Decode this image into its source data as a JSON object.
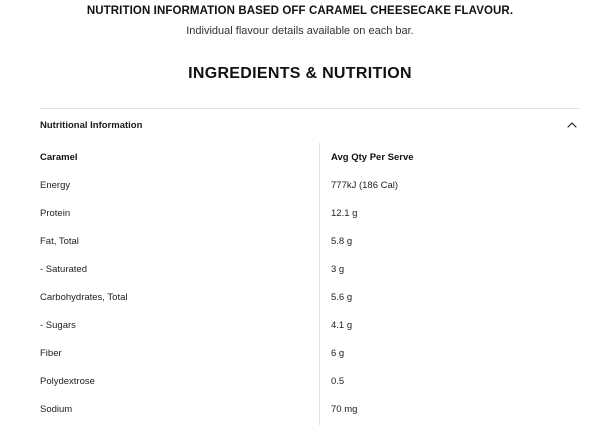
{
  "header": {
    "notice": "NUTRITION INFORMATION BASED OFF CARAMEL CHEESECAKE FLAVOUR.",
    "subnotice": "Individual flavour details available on each bar.",
    "section_title": "INGREDIENTS & NUTRITION"
  },
  "accordion": {
    "title": "Nutritional Information",
    "toggle_icon": "chevron-up-icon",
    "expanded": true
  },
  "table": {
    "columns": [
      "Caramel",
      "Avg Qty Per Serve"
    ],
    "rows": [
      {
        "label": "Energy",
        "value": "777kJ (186 Cal)"
      },
      {
        "label": "Protein",
        "value": "12.1 g"
      },
      {
        "label": "Fat, Total",
        "value": "5.8 g"
      },
      {
        "label": "- Saturated",
        "value": "3 g"
      },
      {
        "label": "Carbohydrates, Total",
        "value": "5.6 g"
      },
      {
        "label": "- Sugars",
        "value": "4.1 g"
      },
      {
        "label": "Fiber",
        "value": "6 g"
      },
      {
        "label": "Polydextrose",
        "value": "0.5"
      },
      {
        "label": "Sodium",
        "value": "70 mg"
      }
    ]
  },
  "colors": {
    "text": "#1a1a1a",
    "divider": "#e2e2e2",
    "background": "#ffffff"
  }
}
